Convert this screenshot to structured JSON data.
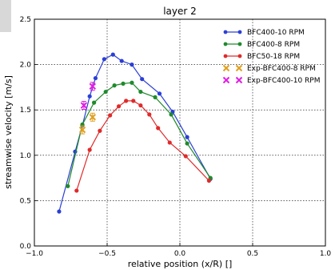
{
  "chart_data": {
    "type": "line",
    "title": "layer 2",
    "xlabel": "relative position (x/R) []",
    "ylabel": "streamwise velocity [m/s]",
    "xlim": [
      -1.0,
      1.0
    ],
    "ylim": [
      0.0,
      2.5
    ],
    "xticks": [
      "−1.0",
      "−0.5",
      "0.0",
      "0.5",
      "1.0"
    ],
    "yticks": [
      "0.0",
      "0.5",
      "1.0",
      "1.5",
      "2.0",
      "2.5"
    ],
    "grid": true,
    "legend_position": "top-right",
    "series": [
      {
        "name": "BFC400-10 RPM",
        "color": "#2b3fd6",
        "marker": "circle",
        "points": [
          [
            -0.83,
            0.38
          ],
          [
            -0.72,
            1.04
          ],
          [
            -0.67,
            1.33
          ],
          [
            -0.62,
            1.65
          ],
          [
            -0.58,
            1.85
          ],
          [
            -0.52,
            2.06
          ],
          [
            -0.46,
            2.11
          ],
          [
            -0.4,
            2.04
          ],
          [
            -0.33,
            2.0
          ],
          [
            -0.26,
            1.84
          ],
          [
            -0.14,
            1.68
          ],
          [
            -0.05,
            1.48
          ],
          [
            0.05,
            1.2
          ],
          [
            0.21,
            0.74
          ]
        ]
      },
      {
        "name": "BFC400-8 RPM",
        "color": "#1f8a2b",
        "marker": "circle",
        "points": [
          [
            -0.77,
            0.66
          ],
          [
            -0.67,
            1.34
          ],
          [
            -0.59,
            1.58
          ],
          [
            -0.51,
            1.7
          ],
          [
            -0.45,
            1.77
          ],
          [
            -0.39,
            1.79
          ],
          [
            -0.33,
            1.8
          ],
          [
            -0.27,
            1.7
          ],
          [
            -0.17,
            1.64
          ],
          [
            -0.06,
            1.45
          ],
          [
            0.05,
            1.13
          ],
          [
            0.21,
            0.75
          ]
        ]
      },
      {
        "name": "BFC50-18 RPM",
        "color": "#e02a2a",
        "marker": "circle",
        "points": [
          [
            -0.71,
            0.61
          ],
          [
            -0.62,
            1.06
          ],
          [
            -0.55,
            1.27
          ],
          [
            -0.48,
            1.44
          ],
          [
            -0.42,
            1.54
          ],
          [
            -0.37,
            1.6
          ],
          [
            -0.32,
            1.6
          ],
          [
            -0.27,
            1.55
          ],
          [
            -0.21,
            1.45
          ],
          [
            -0.15,
            1.3
          ],
          [
            -0.07,
            1.14
          ],
          [
            0.04,
            0.99
          ],
          [
            0.2,
            0.72
          ]
        ]
      },
      {
        "name": "Exp-BFC400-8 RPM",
        "color": "#e0a020",
        "marker": "x",
        "error_bars": true,
        "points": [
          [
            -0.67,
            1.28
          ],
          [
            -0.6,
            1.42
          ]
        ]
      },
      {
        "name": "Exp-BFC400-10 RPM",
        "color": "#e020e0",
        "marker": "x",
        "error_bars": true,
        "points": [
          [
            -0.66,
            1.55
          ],
          [
            -0.6,
            1.76
          ]
        ]
      }
    ]
  }
}
